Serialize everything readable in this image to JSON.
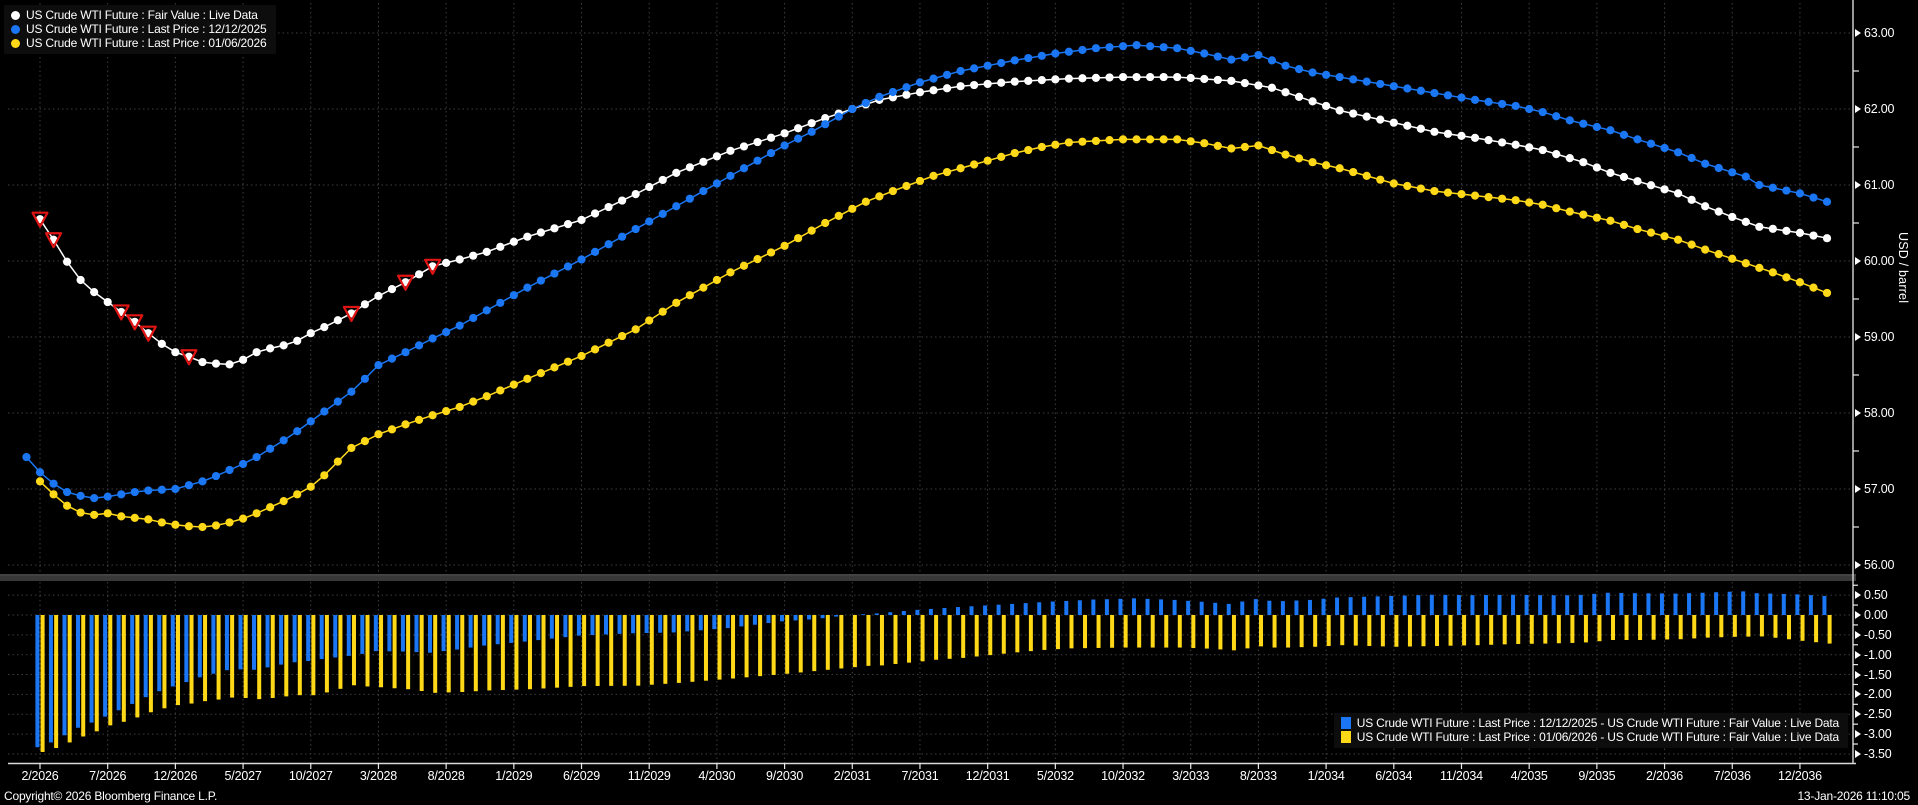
{
  "footer": {
    "copyright": "Copyright© 2026 Bloomberg Finance L.P.",
    "timestamp": "13-Jan-2026 11:10:05"
  },
  "colors": {
    "fair_value": "#ffffff",
    "last_dec": "#1a76f2",
    "last_jan": "#ffd918",
    "flag_red": "#e11414",
    "grid": "#3e3e3e",
    "divider": "#383838",
    "background": "#000000"
  },
  "chart_data": {
    "type": "line",
    "x_unit": "futures contract month (monthly points, linear interpolation between keypoints)",
    "x_tick_labels": [
      "2/2026",
      "7/2026",
      "12/2026",
      "5/2027",
      "10/2027",
      "3/2028",
      "8/2028",
      "1/2029",
      "6/2029",
      "11/2029",
      "4/2030",
      "9/2030",
      "2/2031",
      "7/2031",
      "12/2031",
      "5/2032",
      "10/2032",
      "3/2033",
      "8/2033",
      "1/2034",
      "6/2034",
      "11/2034",
      "4/2035",
      "9/2035",
      "2/2036",
      "7/2036",
      "12/2036"
    ],
    "months_per_tick": 5,
    "first_month": -1,
    "last_month": 132,
    "panels": [
      {
        "name": "price",
        "type": "line",
        "ylabel": "USD / barrel",
        "ylim": [
          55.9,
          63.4
        ],
        "y_tick_labels": [
          "63.00",
          "62.00",
          "61.00",
          "60.00",
          "59.00",
          "58.00",
          "57.00",
          "56.00"
        ],
        "y_tick_values": [
          63,
          62,
          61,
          60,
          59,
          58,
          57,
          56
        ],
        "grid": true,
        "series": [
          {
            "name": "US Crude WTI Future : Fair Value : Live Data",
            "color": "#ffffff",
            "marker": "circle",
            "keypoints": [
              [
                0,
                60.55
              ],
              [
                1,
                60.28
              ],
              [
                2,
                59.99
              ],
              [
                3,
                59.75
              ],
              [
                4,
                59.59
              ],
              [
                5,
                59.46
              ],
              [
                6,
                59.33
              ],
              [
                7,
                59.2
              ],
              [
                8,
                59.05
              ],
              [
                9,
                58.91
              ],
              [
                10,
                58.8
              ],
              [
                11,
                58.74
              ],
              [
                12,
                58.67
              ],
              [
                13,
                58.65
              ],
              [
                14,
                58.64
              ],
              [
                15,
                58.7
              ],
              [
                16,
                58.8
              ],
              [
                17,
                58.85
              ],
              [
                18,
                58.89
              ],
              [
                19,
                58.95
              ],
              [
                20,
                59.05
              ],
              [
                21,
                59.13
              ],
              [
                22,
                59.22
              ],
              [
                23,
                59.31
              ],
              [
                24,
                59.43
              ],
              [
                25,
                59.54
              ],
              [
                27,
                59.72
              ],
              [
                29,
                59.93
              ],
              [
                31,
                60.02
              ],
              [
                33,
                60.12
              ],
              [
                36,
                60.32
              ],
              [
                40,
                60.54
              ],
              [
                44,
                60.88
              ],
              [
                47,
                61.16
              ],
              [
                51,
                61.45
              ],
              [
                55,
                61.68
              ],
              [
                58,
                61.88
              ],
              [
                60,
                62.0
              ],
              [
                62,
                62.12
              ],
              [
                65,
                62.22
              ],
              [
                68,
                62.3
              ],
              [
                72,
                62.36
              ],
              [
                76,
                62.4
              ],
              [
                80,
                62.42
              ],
              [
                84,
                62.42
              ],
              [
                88,
                62.37
              ],
              [
                91,
                62.28
              ],
              [
                94,
                62.1
              ],
              [
                96,
                61.98
              ],
              [
                100,
                61.82
              ],
              [
                103,
                61.7
              ],
              [
                106,
                61.62
              ],
              [
                109,
                61.53
              ],
              [
                111,
                61.46
              ],
              [
                114,
                61.3
              ],
              [
                116,
                61.16
              ],
              [
                118,
                61.05
              ],
              [
                121,
                60.89
              ],
              [
                123,
                60.72
              ],
              [
                125,
                60.58
              ],
              [
                127,
                60.45
              ],
              [
                130,
                60.37
              ],
              [
                132,
                60.3
              ]
            ],
            "flag": {
              "shape": "triangle-down-outline",
              "color": "#e11414",
              "months": [
                0,
                1,
                6,
                7,
                8,
                11,
                23,
                27,
                29
              ]
            }
          },
          {
            "name": "US Crude WTI Future : Last Price : 12/12/2025",
            "color": "#1a76f2",
            "marker": "circle",
            "keypoints": [
              [
                -1,
                57.42
              ],
              [
                0,
                57.22
              ],
              [
                1,
                57.07
              ],
              [
                2,
                56.96
              ],
              [
                3,
                56.91
              ],
              [
                4,
                56.88
              ],
              [
                5,
                56.9
              ],
              [
                6,
                56.93
              ],
              [
                7,
                56.96
              ],
              [
                8,
                56.98
              ],
              [
                10,
                57.0
              ],
              [
                11,
                57.05
              ],
              [
                12,
                57.1
              ],
              [
                13,
                57.17
              ],
              [
                14,
                57.25
              ],
              [
                15,
                57.33
              ],
              [
                16,
                57.42
              ],
              [
                17,
                57.53
              ],
              [
                18,
                57.64
              ],
              [
                19,
                57.76
              ],
              [
                20,
                57.89
              ],
              [
                21,
                58.02
              ],
              [
                22,
                58.15
              ],
              [
                23,
                58.28
              ],
              [
                24,
                58.45
              ],
              [
                25,
                58.63
              ],
              [
                27,
                58.8
              ],
              [
                29,
                58.98
              ],
              [
                31,
                59.15
              ],
              [
                33,
                59.35
              ],
              [
                36,
                59.65
              ],
              [
                40,
                60.02
              ],
              [
                44,
                60.42
              ],
              [
                47,
                60.72
              ],
              [
                49,
                60.92
              ],
              [
                51,
                61.12
              ],
              [
                53,
                61.32
              ],
              [
                55,
                61.52
              ],
              [
                57,
                61.7
              ],
              [
                59,
                61.9
              ],
              [
                60,
                62.0
              ],
              [
                62,
                62.16
              ],
              [
                65,
                62.35
              ],
              [
                68,
                62.5
              ],
              [
                72,
                62.64
              ],
              [
                75,
                62.73
              ],
              [
                78,
                62.8
              ],
              [
                81,
                62.84
              ],
              [
                84,
                62.8
              ],
              [
                86,
                62.73
              ],
              [
                88,
                62.65
              ],
              [
                90,
                62.71
              ],
              [
                92,
                62.57
              ],
              [
                94,
                62.48
              ],
              [
                96,
                62.42
              ],
              [
                98,
                62.36
              ],
              [
                100,
                62.3
              ],
              [
                102,
                62.24
              ],
              [
                104,
                62.18
              ],
              [
                106,
                62.12
              ],
              [
                109,
                62.04
              ],
              [
                111,
                61.96
              ],
              [
                113,
                61.85
              ],
              [
                116,
                61.72
              ],
              [
                118,
                61.6
              ],
              [
                121,
                61.43
              ],
              [
                123,
                61.28
              ],
              [
                126,
                61.11
              ],
              [
                127,
                61.0
              ],
              [
                130,
                60.89
              ],
              [
                132,
                60.78
              ]
            ]
          },
          {
            "name": "US Crude WTI Future : Last Price : 01/06/2026",
            "color": "#ffd918",
            "marker": "circle",
            "keypoints": [
              [
                0,
                57.1
              ],
              [
                1,
                56.93
              ],
              [
                2,
                56.78
              ],
              [
                3,
                56.69
              ],
              [
                4,
                56.66
              ],
              [
                5,
                56.68
              ],
              [
                6,
                56.64
              ],
              [
                7,
                56.62
              ],
              [
                8,
                56.6
              ],
              [
                9,
                56.56
              ],
              [
                10,
                56.53
              ],
              [
                11,
                56.51
              ],
              [
                12,
                56.5
              ],
              [
                13,
                56.52
              ],
              [
                14,
                56.56
              ],
              [
                15,
                56.61
              ],
              [
                16,
                56.68
              ],
              [
                17,
                56.76
              ],
              [
                18,
                56.84
              ],
              [
                19,
                56.93
              ],
              [
                20,
                57.03
              ],
              [
                21,
                57.18
              ],
              [
                22,
                57.36
              ],
              [
                23,
                57.54
              ],
              [
                25,
                57.72
              ],
              [
                27,
                57.85
              ],
              [
                29,
                57.97
              ],
              [
                31,
                58.08
              ],
              [
                33,
                58.22
              ],
              [
                36,
                58.45
              ],
              [
                40,
                58.75
              ],
              [
                44,
                59.1
              ],
              [
                47,
                59.45
              ],
              [
                51,
                59.85
              ],
              [
                55,
                60.2
              ],
              [
                58,
                60.5
              ],
              [
                61,
                60.78
              ],
              [
                63,
                60.92
              ],
              [
                66,
                61.12
              ],
              [
                68,
                61.22
              ],
              [
                70,
                61.32
              ],
              [
                72,
                61.42
              ],
              [
                74,
                61.5
              ],
              [
                76,
                61.56
              ],
              [
                78,
                61.58
              ],
              [
                80,
                61.6
              ],
              [
                84,
                61.6
              ],
              [
                86,
                61.55
              ],
              [
                88,
                61.48
              ],
              [
                90,
                61.52
              ],
              [
                92,
                61.4
              ],
              [
                94,
                61.3
              ],
              [
                96,
                61.22
              ],
              [
                98,
                61.12
              ],
              [
                100,
                61.02
              ],
              [
                103,
                60.92
              ],
              [
                106,
                60.86
              ],
              [
                109,
                60.8
              ],
              [
                111,
                60.74
              ],
              [
                113,
                60.65
              ],
              [
                116,
                60.53
              ],
              [
                118,
                60.42
              ],
              [
                121,
                60.28
              ],
              [
                123,
                60.15
              ],
              [
                126,
                59.97
              ],
              [
                128,
                59.85
              ],
              [
                130,
                59.72
              ],
              [
                132,
                59.58
              ]
            ]
          }
        ]
      },
      {
        "name": "spread",
        "type": "bar",
        "ylim": [
          -3.77,
          0.82
        ],
        "y_tick_labels": [
          "0.50",
          "0.00",
          "-0.50",
          "-1.00",
          "-1.50",
          "-2.00",
          "-2.50",
          "-3.00",
          "-3.50"
        ],
        "y_tick_values": [
          0.5,
          0,
          -0.5,
          -1,
          -1.5,
          -2,
          -2.5,
          -3,
          -3.5
        ],
        "grid": true,
        "series": [
          {
            "name": "US Crude WTI Future : Last Price : 12/12/2025 - US Crude WTI Future : Fair Value : Live Data",
            "color": "#1a76f2",
            "derived": "price.series[1] minus price.series[0], monthly"
          },
          {
            "name": "US Crude WTI Future : Last Price : 01/06/2026 - US Crude WTI Future : Fair Value : Live Data",
            "color": "#ffd918",
            "derived": "price.series[2] minus price.series[0], monthly"
          }
        ]
      }
    ]
  }
}
